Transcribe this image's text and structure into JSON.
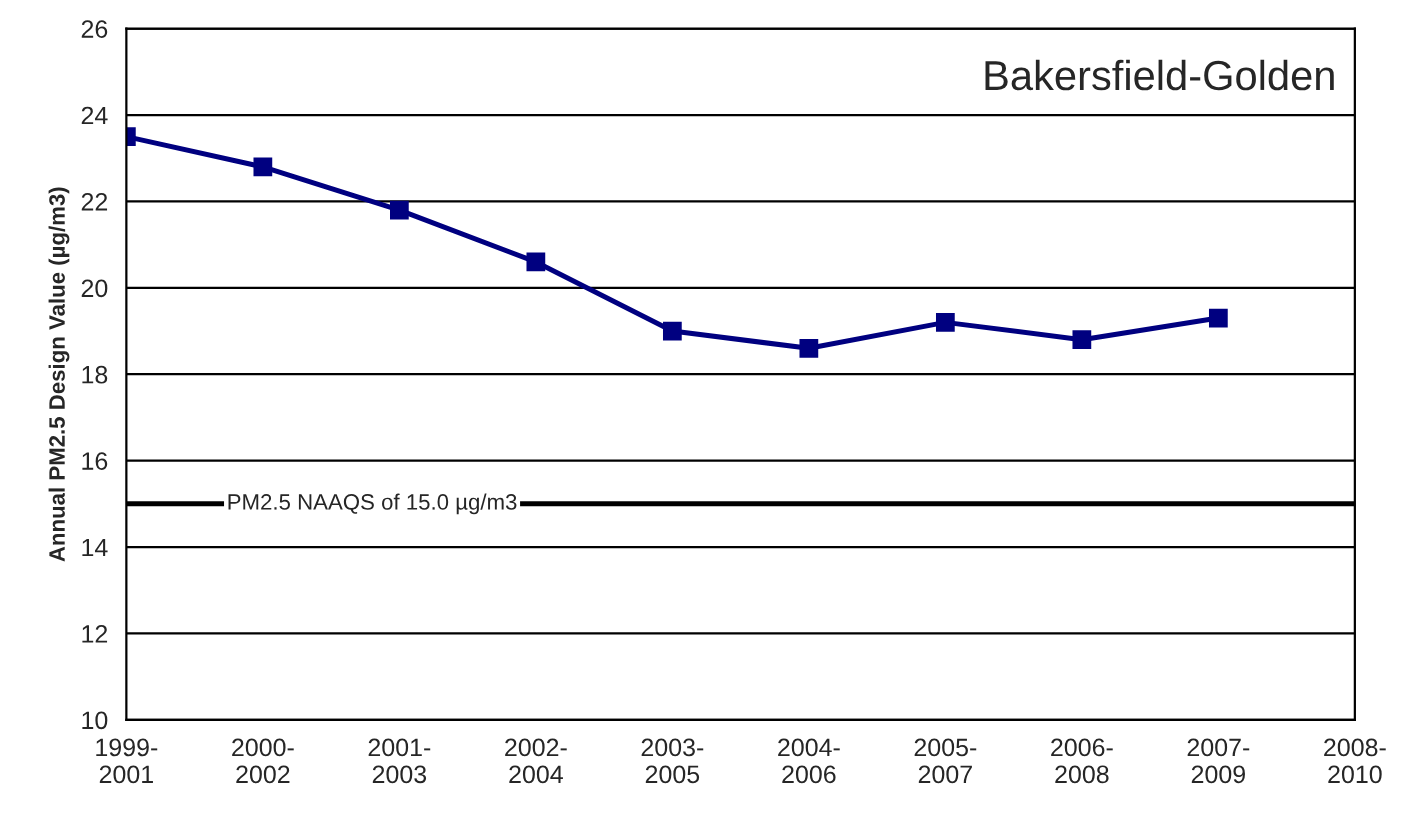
{
  "chart_data": {
    "type": "line",
    "title": "Bakersfield-Golden",
    "ylabel": "Annual PM2.5 Design Value (µg/m3)",
    "categories": [
      "1999-\n2001",
      "2000-\n2002",
      "2001-\n2003",
      "2002-\n2004",
      "2003-\n2005",
      "2004-\n2006",
      "2005-\n2007",
      "2006-\n2008",
      "2007-\n2009",
      "2008-\n2010"
    ],
    "series": [
      {
        "color": "#000080",
        "values": [
          23.5,
          22.8,
          21.8,
          20.6,
          19.0,
          18.6,
          19.2,
          18.8,
          19.3,
          null
        ]
      }
    ],
    "ylim": [
      10,
      26
    ],
    "yticks": [
      10,
      12,
      14,
      16,
      18,
      20,
      22,
      24,
      26
    ],
    "grid": "y",
    "marker": "square",
    "line_style": "solid",
    "ref_lines": [
      {
        "axis": "y",
        "value": 15,
        "label": "PM2.5 NAAQS of 15.0 µg/m3",
        "color": "#000000"
      }
    ]
  }
}
